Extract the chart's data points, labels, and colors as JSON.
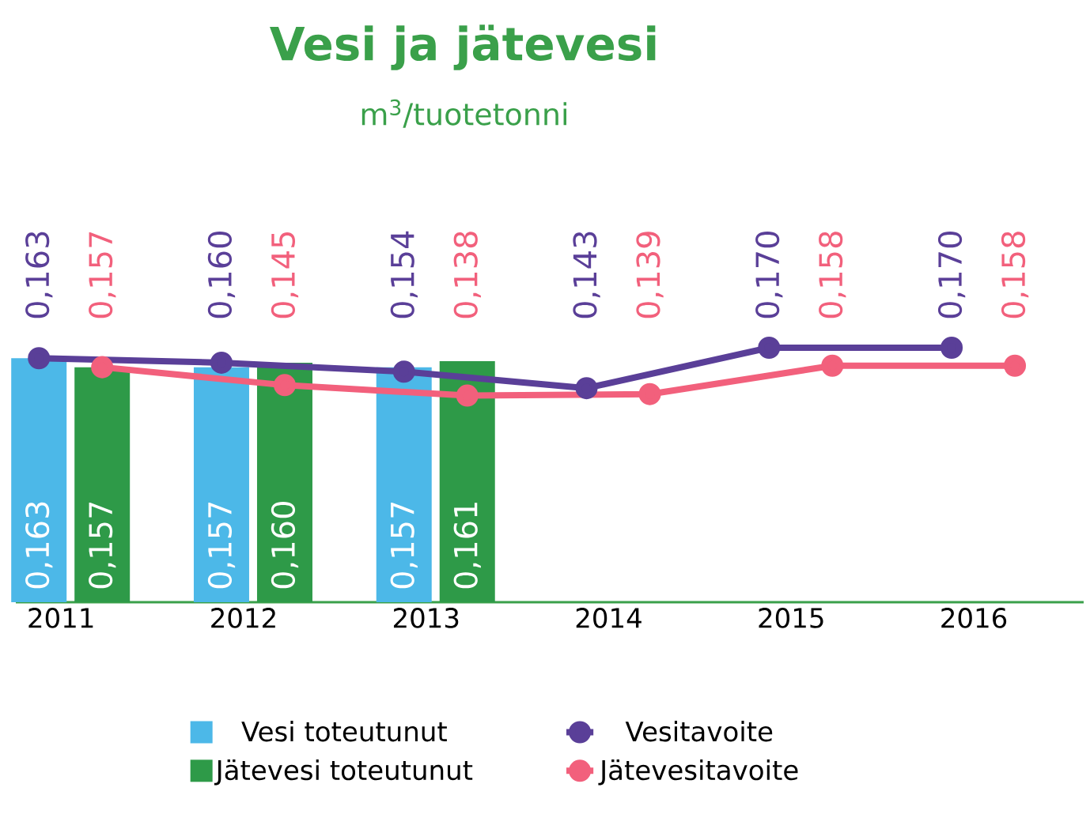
{
  "chart_data": {
    "type": "bar",
    "title": "Vesi ja jätevesi",
    "subtitle": "m$^{3}$/tuotetonni",
    "categories": [
      "2011",
      "2012",
      "2013",
      "2014",
      "2015",
      "2016"
    ],
    "series": [
      {
        "name": "Vesi toteutunut",
        "color": "#4cb8e8",
        "values": [
          0.163,
          0.157,
          0.157,
          null,
          null,
          null
        ],
        "value_labels": [
          "0,163",
          "0,157",
          "0,157",
          null,
          null,
          null
        ]
      },
      {
        "name": "Jätevesi toteutunut",
        "color": "#2e9a48",
        "values": [
          0.157,
          0.16,
          0.161,
          null,
          null,
          null
        ],
        "value_labels": [
          "0,157",
          "0,160",
          "0,161",
          null,
          null,
          null
        ]
      },
      {
        "name": "Vesitavoite",
        "type": "line",
        "color": "#5a3f98",
        "values": [
          0.163,
          0.16,
          0.154,
          0.143,
          0.17,
          0.17
        ],
        "value_labels": [
          "0,163",
          "0,160",
          "0,154",
          "0,143",
          "0,170",
          "0,170"
        ]
      },
      {
        "name": "Jätevesitavoite",
        "type": "line",
        "color": "#f2607c",
        "values": [
          0.157,
          0.145,
          0.138,
          0.139,
          0.158,
          0.158
        ],
        "value_labels": [
          "0,157",
          "0,145",
          "0,138",
          "0,139",
          "0,158",
          "0,158"
        ]
      }
    ],
    "marker": "circle",
    "legend": "bottom"
  }
}
